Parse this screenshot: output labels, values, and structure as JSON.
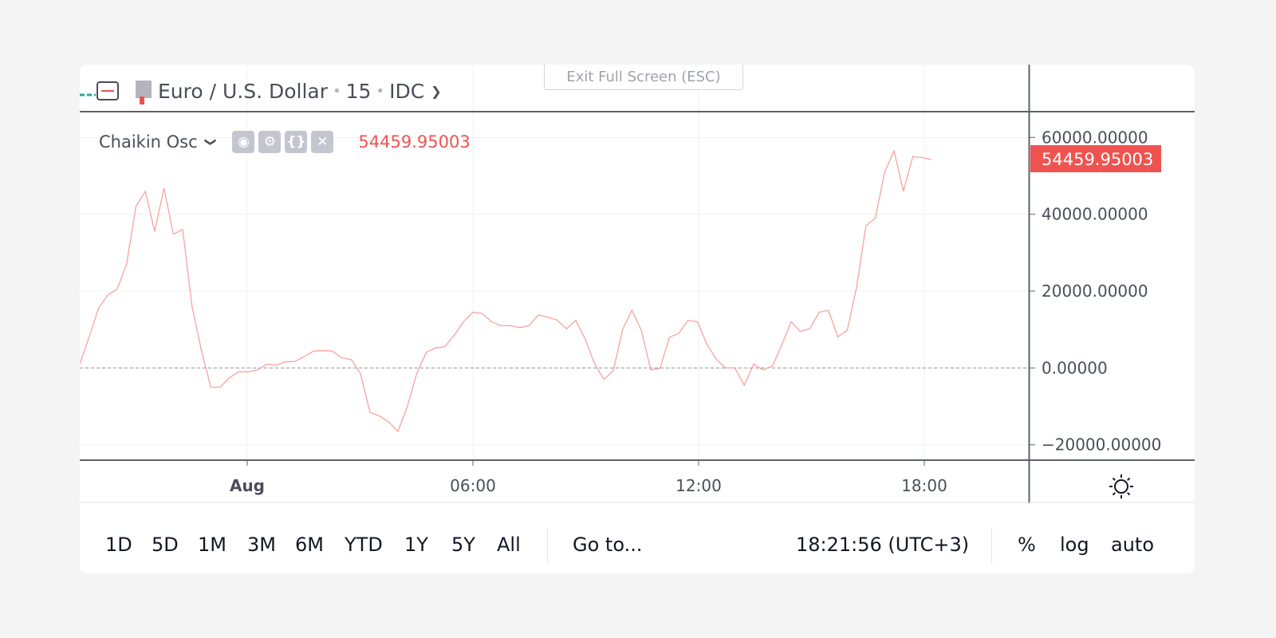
{
  "header": {
    "exit_fullscreen": "Exit Full Screen (ESC)",
    "symbol": "Euro / U.S. Dollar",
    "interval": "15",
    "exchange": "IDC"
  },
  "legend": {
    "indicator": "Chaikin Osc",
    "value": "54459.95003",
    "icons": [
      "eye-icon",
      "gear-icon",
      "braces-icon",
      "close-icon"
    ]
  },
  "price_badge": "54459.95003",
  "toolbar": {
    "ranges": [
      "1D",
      "5D",
      "1M",
      "3M",
      "6M",
      "YTD",
      "1Y",
      "5Y",
      "All"
    ],
    "goto": "Go to...",
    "time": "18:21:56 (UTC+3)",
    "percent": "%",
    "log": "log",
    "auto": "auto"
  },
  "colors": {
    "line": "#f7a39f",
    "badge": "#ef5350",
    "grid": "#eef1f5",
    "axis": "#5d606b"
  },
  "chart_data": {
    "type": "line",
    "series": [
      {
        "name": "Chaikin Osc",
        "values": [
          1000,
          8000,
          15500,
          19000,
          20500,
          27000,
          42000,
          46000,
          35500,
          46800,
          34800,
          36000,
          16000,
          4500,
          -5000,
          -5000,
          -2500,
          -1000,
          -1000,
          -500,
          1000,
          700,
          1600,
          1700,
          3000,
          4400,
          4500,
          4400,
          2600,
          2200,
          -1500,
          -11500,
          -12500,
          -14000,
          -16500,
          -10000,
          -1500,
          4000,
          5200,
          5500,
          8500,
          12000,
          14500,
          14200,
          12000,
          11000,
          11000,
          10500,
          11000,
          13800,
          13200,
          12500,
          10200,
          12400,
          7500,
          1100,
          -3000,
          -700,
          10000,
          15000,
          9800,
          -500,
          -100,
          8000,
          9000,
          12400,
          12000,
          6200,
          2300,
          0,
          0,
          -4500,
          1000,
          -500,
          500,
          6000,
          12000,
          9500,
          10200,
          14500,
          15000,
          8100,
          9800,
          21000,
          37000,
          39000,
          51000,
          56500,
          46000,
          55000,
          54800,
          54200
        ],
        "note_last": 54459.95003
      }
    ],
    "x_tick_labels": [
      "Aug",
      "06:00",
      "12:00",
      "18:00"
    ],
    "y_tick_labels": [
      "60000.00000",
      "40000.00000",
      "20000.00000",
      "0.00000",
      "−20000.00000"
    ],
    "y_ticks": [
      60000,
      40000,
      20000,
      0,
      -20000
    ],
    "ylim": [
      -24000,
      66500
    ],
    "zero_line": true,
    "grid": true
  }
}
